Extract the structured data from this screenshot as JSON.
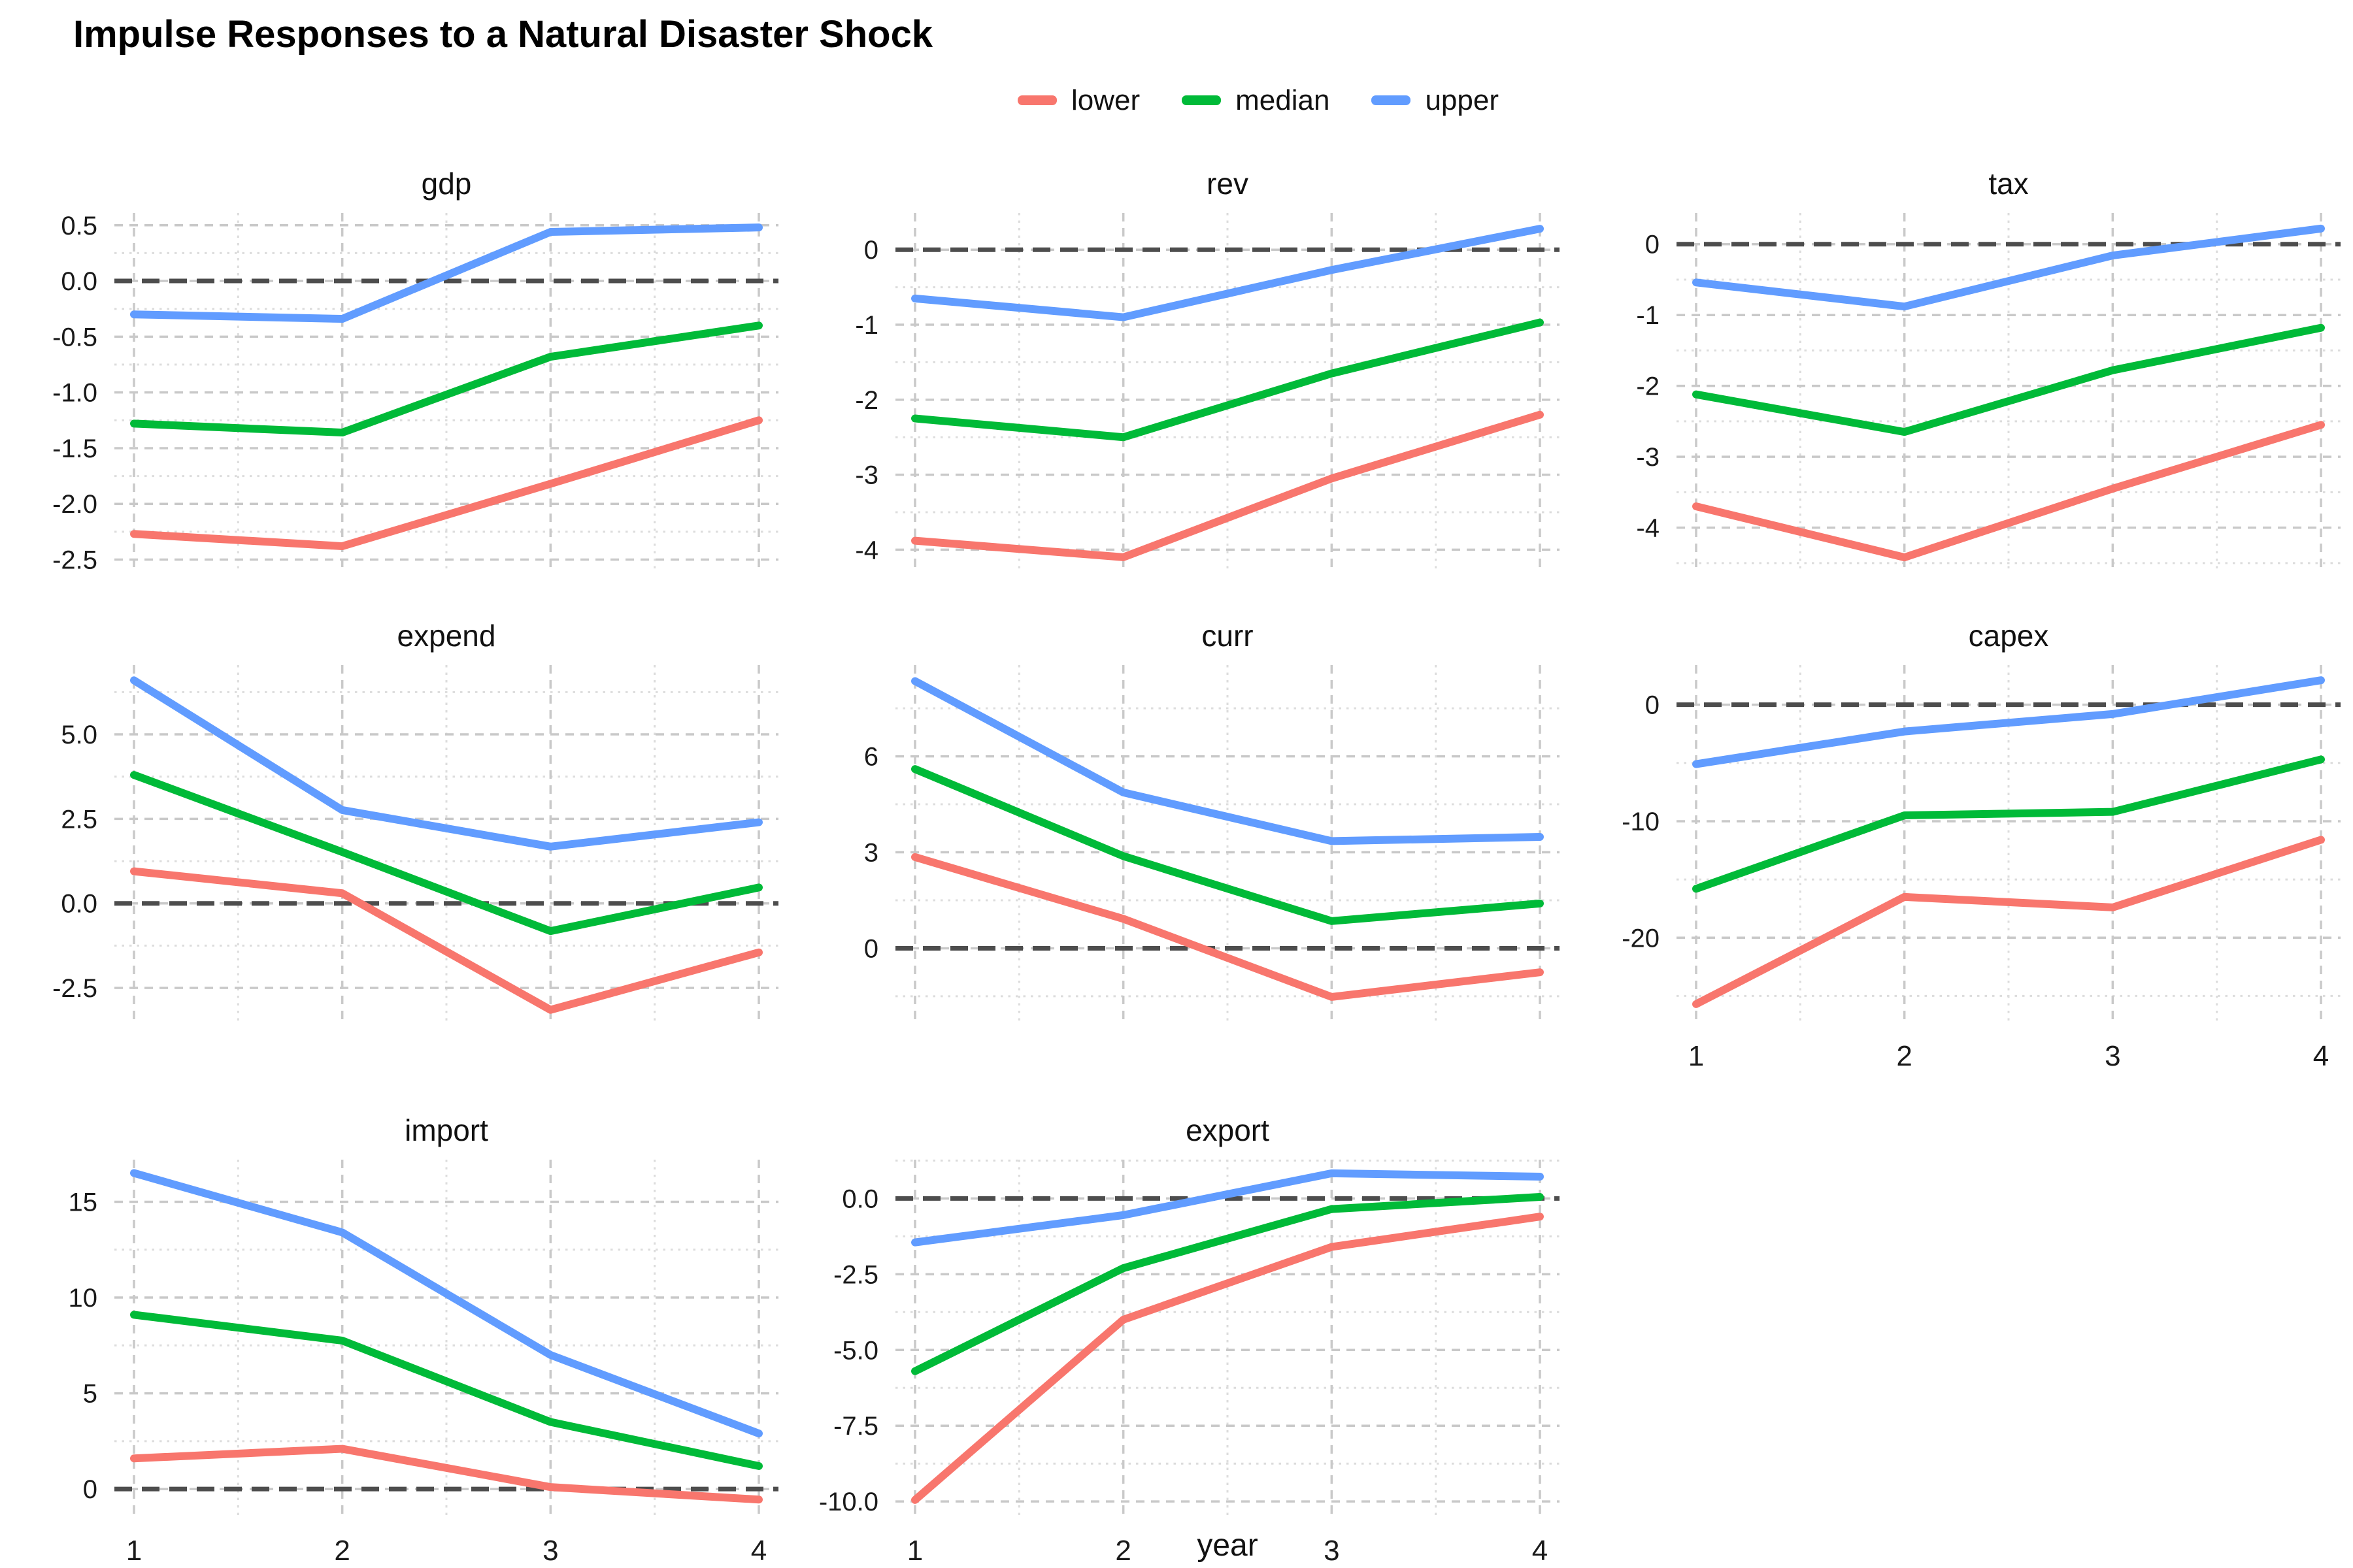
{
  "title": "Impulse Responses to a Natural Disaster Shock",
  "legend": {
    "items": [
      {
        "id": "lower",
        "label": "lower",
        "color": "#F8766D"
      },
      {
        "id": "median",
        "label": "median",
        "color": "#00BA38"
      },
      {
        "id": "upper",
        "label": "upper",
        "color": "#619CFF"
      }
    ]
  },
  "x_axis": {
    "label": "year",
    "ticks": [
      1,
      2,
      3,
      4
    ],
    "tick_labels": [
      "1",
      "2",
      "3",
      "4"
    ]
  },
  "style": {
    "major_grid_color": "#C9C9C9",
    "minor_grid_color": "#DCDCDC",
    "zero_line_color": "#4D4D4D",
    "axis_text_color": "#1a1a1a"
  },
  "chart_data": {
    "type": "line",
    "x": [
      1,
      2,
      3,
      4
    ],
    "xlabel": "year",
    "legend_position": "top",
    "grid": true,
    "zero_line": "dashed",
    "series_names": [
      "lower",
      "median",
      "upper"
    ],
    "facets": [
      {
        "name": "gdp",
        "ylim": [
          -2.62,
          0.61
        ],
        "yticks": [
          0.5,
          0.0,
          -0.5,
          -1.0,
          -1.5,
          -2.0,
          -2.5
        ],
        "ytick_labels": [
          "0.5",
          "0.0",
          "-0.5",
          "-1.0",
          "-1.5",
          "-2.0",
          "-2.5"
        ],
        "show_x_labels": false,
        "series": {
          "lower": [
            -2.27,
            -2.38,
            -1.82,
            -1.25
          ],
          "median": [
            -1.28,
            -1.36,
            -0.68,
            -0.4
          ],
          "upper": [
            -0.3,
            -0.34,
            0.44,
            0.48
          ]
        }
      },
      {
        "name": "rev",
        "ylim": [
          -4.31,
          0.49
        ],
        "yticks": [
          0,
          -1,
          -2,
          -3,
          -4
        ],
        "ytick_labels": [
          "0",
          "-1",
          "-2",
          "-3",
          "-4"
        ],
        "show_x_labels": false,
        "series": {
          "lower": [
            -3.88,
            -4.1,
            -3.05,
            -2.2
          ],
          "median": [
            -2.25,
            -2.5,
            -1.65,
            -0.97
          ],
          "upper": [
            -0.65,
            -0.9,
            -0.27,
            0.28
          ]
        }
      },
      {
        "name": "tax",
        "ylim": [
          -4.64,
          0.44
        ],
        "yticks": [
          0,
          -1,
          -2,
          -3,
          -4
        ],
        "ytick_labels": [
          "0",
          "-1",
          "-2",
          "-3",
          "-4"
        ],
        "show_x_labels": false,
        "series": {
          "lower": [
            -3.7,
            -4.42,
            -3.45,
            -2.55
          ],
          "median": [
            -2.12,
            -2.65,
            -1.78,
            -1.18
          ],
          "upper": [
            -0.54,
            -0.88,
            -0.16,
            0.22
          ]
        }
      },
      {
        "name": "expend",
        "ylim": [
          -3.6,
          7.05
        ],
        "yticks": [
          5.0,
          2.5,
          0.0,
          -2.5
        ],
        "ytick_labels": [
          "5.0",
          "2.5",
          "0.0",
          "-2.5"
        ],
        "show_x_labels": false,
        "series": {
          "lower": [
            0.95,
            0.3,
            -3.15,
            -1.45
          ],
          "median": [
            3.8,
            1.52,
            -0.82,
            0.47
          ],
          "upper": [
            6.6,
            2.76,
            1.68,
            2.4
          ]
        }
      },
      {
        "name": "curr",
        "ylim": [
          -2.4,
          8.85
        ],
        "yticks": [
          6,
          3,
          0
        ],
        "ytick_labels": [
          "6",
          "3",
          "0"
        ],
        "show_x_labels": false,
        "series": {
          "lower": [
            2.85,
            0.92,
            -1.52,
            -0.75
          ],
          "median": [
            5.6,
            2.88,
            0.85,
            1.4
          ],
          "upper": [
            8.35,
            4.87,
            3.35,
            3.48
          ]
        }
      },
      {
        "name": "capex",
        "ylim": [
          -27.5,
          3.4
        ],
        "yticks": [
          0,
          -10,
          -20
        ],
        "ytick_labels": [
          "0",
          "-10",
          "-20"
        ],
        "show_x_labels": true,
        "series": {
          "lower": [
            -25.7,
            -16.5,
            -17.4,
            -11.6
          ],
          "median": [
            -15.8,
            -9.5,
            -9.2,
            -4.7
          ],
          "upper": [
            -5.1,
            -2.3,
            -0.8,
            2.1
          ]
        }
      },
      {
        "name": "import",
        "ylim": [
          -1.6,
          17.2
        ],
        "yticks": [
          15,
          10,
          5,
          0
        ],
        "ytick_labels": [
          "15",
          "10",
          "5",
          "0"
        ],
        "show_x_labels": true,
        "series": {
          "lower": [
            1.6,
            2.1,
            0.1,
            -0.55
          ],
          "median": [
            9.1,
            7.75,
            3.5,
            1.2
          ],
          "upper": [
            16.5,
            13.4,
            7.0,
            2.9
          ]
        }
      },
      {
        "name": "export",
        "ylim": [
          -10.6,
          1.28
        ],
        "yticks": [
          0.0,
          -2.5,
          -5.0,
          -7.5,
          -10.0
        ],
        "ytick_labels": [
          "0.0",
          "-2.5",
          "-5.0",
          "-7.5",
          "-10.0"
        ],
        "show_x_labels": true,
        "series": {
          "lower": [
            -9.95,
            -4.0,
            -1.6,
            -0.6
          ],
          "median": [
            -5.7,
            -2.3,
            -0.35,
            0.05
          ],
          "upper": [
            -1.45,
            -0.55,
            0.83,
            0.72
          ]
        }
      }
    ]
  }
}
